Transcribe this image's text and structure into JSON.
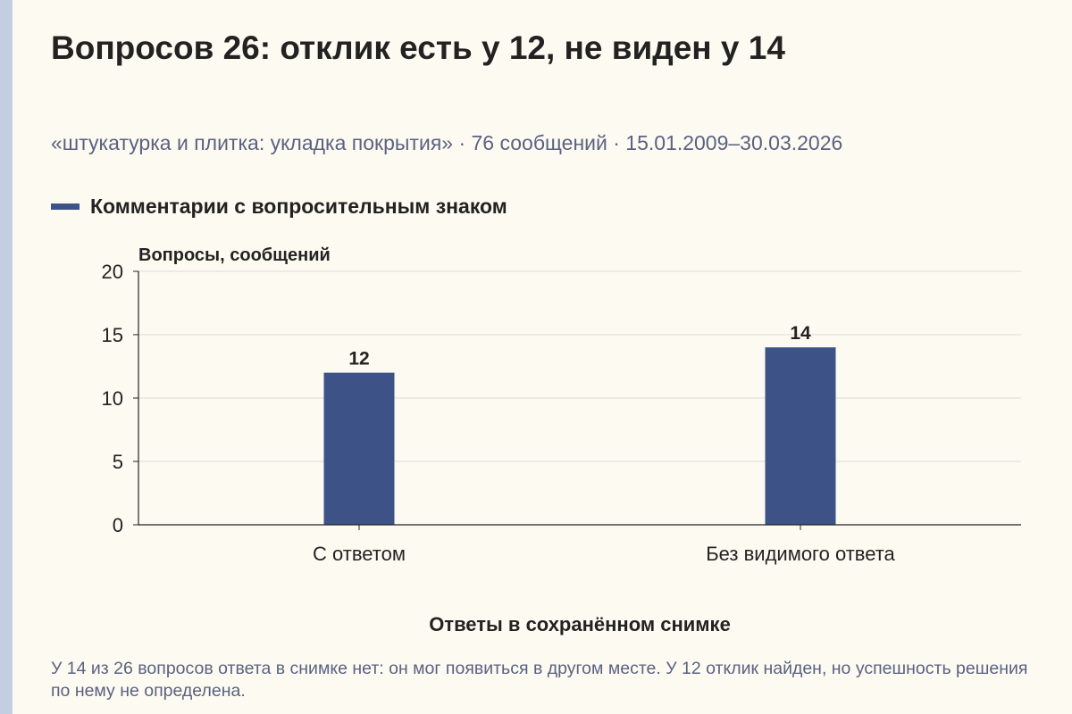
{
  "header": {
    "title": "Вопросов 26: отклик есть у 12, не виден у 14",
    "subtitle": "«штукатурка и плитка: укладка покрытия» · 76 сообщений · 15.01.2009–30.03.2026"
  },
  "legend": {
    "label": "Комментарии с вопросительным знаком"
  },
  "colors": {
    "bar": "#3d5286",
    "grid": "#d9d9d9",
    "axis": "#222222",
    "background": "#fdfbf1"
  },
  "chart_data": {
    "type": "bar",
    "title": "Вопросов 26: отклик есть у 12, не виден у 14",
    "xlabel": "Ответы в сохранённом снимке",
    "ylabel": "Вопросы, сообщений",
    "categories": [
      "С ответом",
      "Без видимого ответа"
    ],
    "values": [
      12,
      14
    ],
    "ylim": [
      0,
      20
    ],
    "yticks": [
      0,
      5,
      10,
      15,
      20
    ],
    "grid": true,
    "legend_position": "top-left",
    "series": [
      {
        "name": "Комментарии с вопросительным знаком",
        "values": [
          12,
          14
        ]
      }
    ]
  },
  "footnote": "У 14 из 26 вопросов ответа в снимке нет: он мог появиться в другом месте. У 12 отклик найден, но успешность решения по нему не определена."
}
